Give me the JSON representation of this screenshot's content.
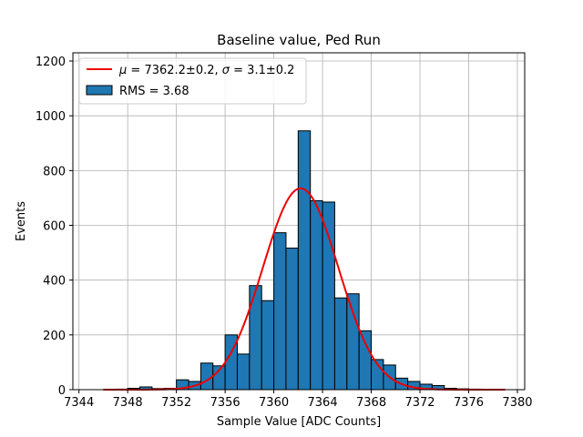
{
  "chart_data": {
    "type": "bar",
    "title": "Baseline value, Ped Run",
    "xlabel": "Sample Value [ADC Counts]",
    "ylabel": "Events",
    "xlim": [
      7343.5,
      7380.6
    ],
    "ylim": [
      0,
      1230
    ],
    "xticks": [
      7344,
      7348,
      7352,
      7356,
      7360,
      7364,
      7368,
      7372,
      7376,
      7380
    ],
    "yticks": [
      0,
      200,
      400,
      600,
      800,
      1000,
      1200
    ],
    "grid": true,
    "legend_position": "top-left",
    "bar_color": "#1f77b4",
    "fit_color": "#ee0000",
    "bin_width": 1,
    "histogram": {
      "name": "RMS = 3.68",
      "bin_left_edges": [
        7346,
        7347,
        7348,
        7349,
        7350,
        7351,
        7352,
        7353,
        7354,
        7355,
        7356,
        7357,
        7358,
        7359,
        7360,
        7361,
        7362,
        7363,
        7364,
        7365,
        7366,
        7367,
        7368,
        7369,
        7370,
        7371,
        7372,
        7373,
        7374,
        7375,
        7376,
        7377,
        7378
      ],
      "values": [
        0,
        2,
        5,
        10,
        4,
        5,
        36,
        30,
        97,
        87,
        200,
        130,
        380,
        325,
        573,
        517,
        945,
        690,
        685,
        335,
        350,
        215,
        110,
        90,
        42,
        30,
        20,
        15,
        5,
        3,
        2,
        1,
        0
      ]
    },
    "fit": {
      "name": "$\\mu = 7362.2\\pm0.2,\\, \\sigma = 3.1\\pm0.2$",
      "label_parts": [
        "μ",
        " = 7362.2±0.2, ",
        "σ",
        " = 3.1±0.2"
      ],
      "mu": 7362.2,
      "sigma": 3.1,
      "amplitude": 735,
      "x_range": [
        7346,
        7379
      ]
    }
  }
}
